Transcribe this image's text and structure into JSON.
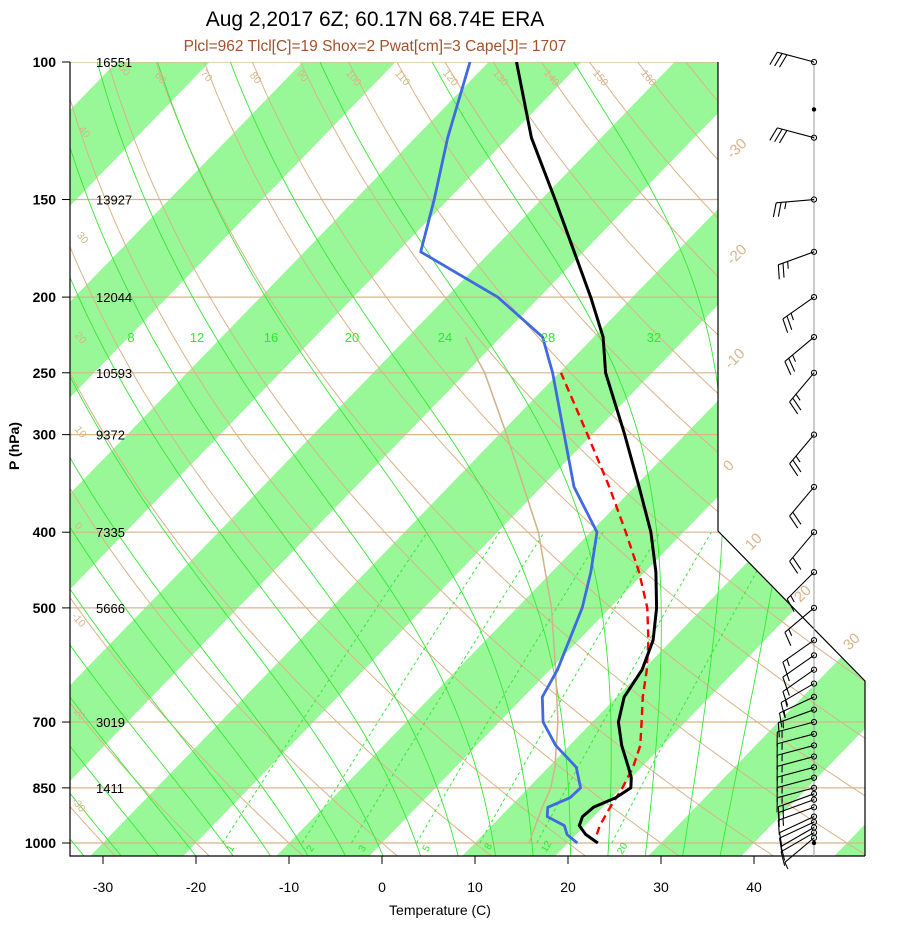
{
  "title": "Aug 2,2017 6Z; 60.17N 68.74E ERA",
  "subtitle": "Plcl=962 Tlcl[C]=19 Shox=2 Pwat[cm]=3 Cape[J]= 1707",
  "chart_data": {
    "type": "line",
    "subtype": "skew-T log-P diagram",
    "ylabel": "P (hPa)",
    "xlabel": "Temperature (C)",
    "y_scale": "log",
    "y_range_hPa": [
      100,
      1000
    ],
    "x_range_C": [
      -34,
      52
    ],
    "pressure_ticks": [
      100,
      150,
      200,
      250,
      300,
      400,
      500,
      700,
      850,
      1000
    ],
    "temperature_ticks": [
      -30,
      -20,
      -10,
      0,
      10,
      20,
      30,
      40
    ],
    "height_labels": [
      {
        "p": 100,
        "z": "16551"
      },
      {
        "p": 150,
        "z": "13927"
      },
      {
        "p": 200,
        "z": "12044"
      },
      {
        "p": 250,
        "z": "10593"
      },
      {
        "p": 300,
        "z": "9372"
      },
      {
        "p": 400,
        "z": "7335"
      },
      {
        "p": 500,
        "z": "5666"
      },
      {
        "p": 700,
        "z": "3019"
      },
      {
        "p": 850,
        "z": "1411"
      }
    ],
    "isotherm_band_labels": [
      "-30",
      "-20",
      "-10",
      "0",
      "10",
      "20",
      "30"
    ],
    "dry_adiabat_labels": [
      "-30",
      "-20",
      "-10",
      "0",
      "10",
      "20",
      "30",
      "40",
      "50",
      "60",
      "70",
      "80",
      "90",
      "100",
      "110",
      "120",
      "130",
      "140",
      "150",
      "160"
    ],
    "moist_adiabat_labels": [
      "8",
      "12",
      "16",
      "20",
      "24",
      "28",
      "32"
    ],
    "mixing_ratio_labels": [
      "1",
      "2",
      "3",
      "5",
      "8",
      "12",
      "20"
    ],
    "series": [
      {
        "name": "temperature",
        "color": "#000000",
        "points": [
          [
            1000,
            23.2
          ],
          [
            975,
            21.0
          ],
          [
            950,
            19.4
          ],
          [
            925,
            18.8
          ],
          [
            900,
            19.0
          ],
          [
            875,
            20.4
          ],
          [
            850,
            21.0
          ],
          [
            825,
            20.0
          ],
          [
            800,
            18.6
          ],
          [
            750,
            15.6
          ],
          [
            700,
            12.8
          ],
          [
            650,
            10.8
          ],
          [
            600,
            9.9
          ],
          [
            550,
            8.0
          ],
          [
            500,
            5.0
          ],
          [
            450,
            1.2
          ],
          [
            400,
            -3.5
          ],
          [
            350,
            -9.5
          ],
          [
            300,
            -16.5
          ],
          [
            250,
            -25.0
          ],
          [
            225,
            -29.0
          ],
          [
            200,
            -34.5
          ],
          [
            175,
            -41.0
          ],
          [
            150,
            -48.5
          ],
          [
            125,
            -57.5
          ],
          [
            100,
            -67.0
          ]
        ]
      },
      {
        "name": "dewpoint",
        "color": "#4169e1",
        "points": [
          [
            1000,
            21.0
          ],
          [
            975,
            19.0
          ],
          [
            950,
            17.8
          ],
          [
            925,
            15.0
          ],
          [
            900,
            14.1
          ],
          [
            875,
            15.5
          ],
          [
            850,
            15.6
          ],
          [
            800,
            13.0
          ],
          [
            750,
            8.5
          ],
          [
            700,
            4.7
          ],
          [
            650,
            2.0
          ],
          [
            600,
            0.8
          ],
          [
            500,
            -3.0
          ],
          [
            450,
            -5.8
          ],
          [
            400,
            -9.3
          ],
          [
            350,
            -16.5
          ],
          [
            300,
            -23.0
          ],
          [
            250,
            -30.7
          ],
          [
            225,
            -35.5
          ],
          [
            200,
            -44.5
          ],
          [
            175,
            -57.5
          ],
          [
            150,
            -61.5
          ],
          [
            125,
            -66.5
          ],
          [
            100,
            -72.0
          ]
        ]
      },
      {
        "name": "parcel",
        "color": "#ff0000",
        "style": "dashed",
        "points": [
          [
            975,
            22.2
          ],
          [
            950,
            21.6
          ],
          [
            900,
            20.8
          ],
          [
            850,
            20.1
          ],
          [
            800,
            19.1
          ],
          [
            750,
            17.6
          ],
          [
            700,
            15.3
          ],
          [
            650,
            12.8
          ],
          [
            600,
            10.4
          ],
          [
            550,
            7.5
          ],
          [
            500,
            4.0
          ],
          [
            450,
            -0.6
          ],
          [
            400,
            -6.2
          ],
          [
            350,
            -12.7
          ],
          [
            300,
            -20.5
          ],
          [
            250,
            -29.8
          ]
        ]
      },
      {
        "name": "virtual-temperature",
        "color": "#d2b48c",
        "points": [
          [
            1000,
            15.8
          ],
          [
            900,
            13.5
          ],
          [
            850,
            12.4
          ],
          [
            800,
            10.7
          ],
          [
            700,
            6.3
          ],
          [
            600,
            0.6
          ],
          [
            500,
            -6.3
          ],
          [
            400,
            -15.6
          ],
          [
            300,
            -29.2
          ],
          [
            250,
            -38.0
          ],
          [
            225,
            -43.8
          ]
        ]
      }
    ],
    "wind_barbs": [
      {
        "p": 1000,
        "speed_kt": 0,
        "dir": 270
      },
      {
        "p": 985,
        "speed_kt": 5,
        "dir": 230
      },
      {
        "p": 970,
        "speed_kt": 10,
        "dir": 240
      },
      {
        "p": 955,
        "speed_kt": 10,
        "dir": 240
      },
      {
        "p": 940,
        "speed_kt": 10,
        "dir": 245
      },
      {
        "p": 925,
        "speed_kt": 10,
        "dir": 245
      },
      {
        "p": 900,
        "speed_kt": 15,
        "dir": 250
      },
      {
        "p": 880,
        "speed_kt": 15,
        "dir": 250
      },
      {
        "p": 865,
        "speed_kt": 15,
        "dir": 250
      },
      {
        "p": 850,
        "speed_kt": 15,
        "dir": 255
      },
      {
        "p": 825,
        "speed_kt": 15,
        "dir": 255
      },
      {
        "p": 800,
        "speed_kt": 15,
        "dir": 255
      },
      {
        "p": 775,
        "speed_kt": 15,
        "dir": 255
      },
      {
        "p": 750,
        "speed_kt": 15,
        "dir": 255
      },
      {
        "p": 725,
        "speed_kt": 15,
        "dir": 255
      },
      {
        "p": 700,
        "speed_kt": 15,
        "dir": 255
      },
      {
        "p": 675,
        "speed_kt": 15,
        "dir": 250
      },
      {
        "p": 650,
        "speed_kt": 15,
        "dir": 245
      },
      {
        "p": 625,
        "speed_kt": 15,
        "dir": 240
      },
      {
        "p": 600,
        "speed_kt": 15,
        "dir": 235
      },
      {
        "p": 575,
        "speed_kt": 15,
        "dir": 235
      },
      {
        "p": 550,
        "speed_kt": 15,
        "dir": 235
      },
      {
        "p": 500,
        "speed_kt": 15,
        "dir": 230
      },
      {
        "p": 450,
        "speed_kt": 15,
        "dir": 225
      },
      {
        "p": 400,
        "speed_kt": 20,
        "dir": 220
      },
      {
        "p": 350,
        "speed_kt": 20,
        "dir": 220
      },
      {
        "p": 300,
        "speed_kt": 25,
        "dir": 220
      },
      {
        "p": 250,
        "speed_kt": 25,
        "dir": 220
      },
      {
        "p": 225,
        "speed_kt": 25,
        "dir": 230
      },
      {
        "p": 200,
        "speed_kt": 25,
        "dir": 235
      },
      {
        "p": 175,
        "speed_kt": 25,
        "dir": 250
      },
      {
        "p": 150,
        "speed_kt": 25,
        "dir": 265
      },
      {
        "p": 125,
        "speed_kt": 30,
        "dir": 285
      },
      {
        "p": 115,
        "speed_kt": 0,
        "dir": 270
      },
      {
        "p": 100,
        "speed_kt": 30,
        "dir": 285
      }
    ],
    "colors": {
      "band_fill": "#98f898",
      "dry_adiabat": "#d8b48a",
      "moist_adiabat": "#34e834",
      "isobar": "#d8b48a"
    }
  }
}
